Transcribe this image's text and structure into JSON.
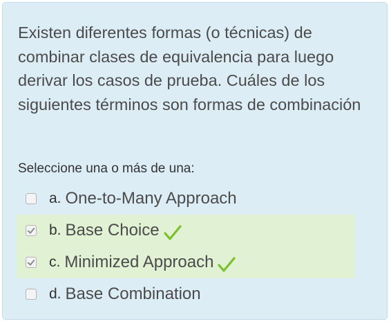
{
  "question": {
    "text": "Existen diferentes formas (o técnicas) de combinar clases de equivalencia para luego derivar los casos de prueba. Cuáles de los siguientes términos son formas de combinación",
    "prompt": "Seleccione una o más de una:"
  },
  "answers": [
    {
      "letter": "a.",
      "label": "One-to-Many Approach",
      "checked": false,
      "correct": false
    },
    {
      "letter": "b.",
      "label": "Base Choice",
      "checked": true,
      "correct": true
    },
    {
      "letter": "c.",
      "label": "Minimized Approach",
      "checked": true,
      "correct": true
    },
    {
      "letter": "d.",
      "label": "Base Combination",
      "checked": false,
      "correct": false
    }
  ],
  "colors": {
    "card_background": "#dcedf6",
    "correct_background": "#e1f1d4",
    "correct_icon": "#7bbf2a"
  },
  "icons": {
    "correct": "check-mark-icon"
  }
}
